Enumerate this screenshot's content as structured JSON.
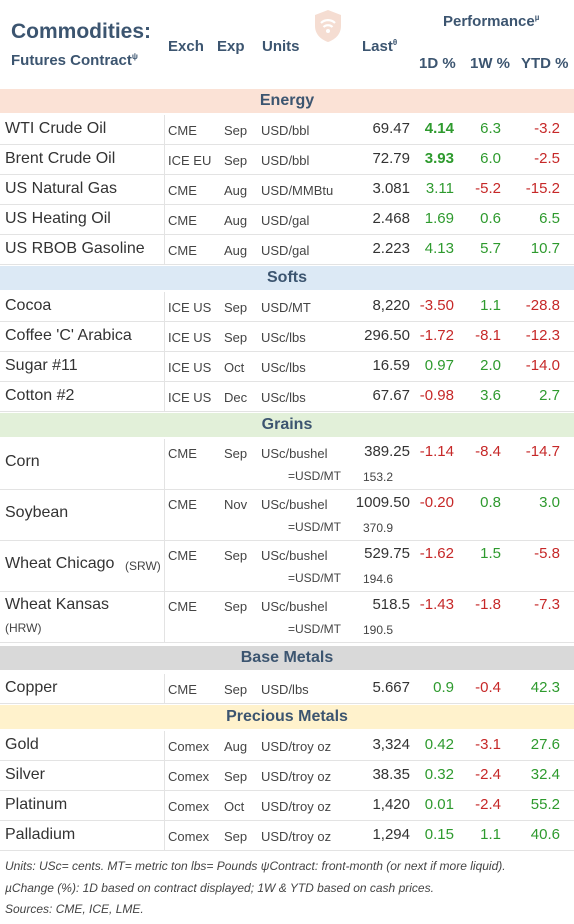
{
  "header": {
    "title": "Commodities:",
    "subtitle": "Futures Contract",
    "subtitle_sup": "ψ",
    "col_exch": "Exch",
    "col_exp": "Exp",
    "col_units": "Units",
    "col_last": "Last",
    "col_last_sup": "θ",
    "performance": "Performance",
    "performance_sup": "µ",
    "col_1d": "1D %",
    "col_1w": "1W %",
    "col_ytd": "YTD %",
    "logo_icon": "wifi-shield-logo-icon"
  },
  "colors": {
    "positive": "#2e9a2e",
    "negative": "#c62828",
    "energy_bg": "#fbe2d6",
    "softs_bg": "#dce9f5",
    "grains_bg": "#e2f0d9",
    "base_bg": "#d9d9d9",
    "precious_bg": "#fff2cc"
  },
  "sections": {
    "energy": {
      "label": "Energy",
      "rows": [
        {
          "name": "WTI Crude Oil",
          "exch": "CME",
          "exp": "Sep",
          "units": "USD/bbl",
          "last": "69.47",
          "d1": "4.14",
          "w1": "6.3",
          "ytd": "-3.2"
        },
        {
          "name": "Brent Crude Oil",
          "exch": "ICE EU",
          "exp": "Sep",
          "units": "USD/bbl",
          "last": "72.79",
          "d1": "3.93",
          "w1": "6.0",
          "ytd": "-2.5"
        },
        {
          "name": "US Natural Gas",
          "exch": "CME",
          "exp": "Aug",
          "units": "USD/MMBtu",
          "last": "3.081",
          "d1": "3.11",
          "w1": "-5.2",
          "ytd": "-15.2"
        },
        {
          "name": "US Heating Oil",
          "exch": "CME",
          "exp": "Aug",
          "units": "USD/gal",
          "last": "2.468",
          "d1": "1.69",
          "w1": "0.6",
          "ytd": "6.5"
        },
        {
          "name": "US RBOB Gasoline",
          "exch": "CME",
          "exp": "Aug",
          "units": "USD/gal",
          "last": "2.223",
          "d1": "4.13",
          "w1": "5.7",
          "ytd": "10.7"
        }
      ]
    },
    "softs": {
      "label": "Softs",
      "rows": [
        {
          "name": "Cocoa",
          "exch": "ICE US",
          "exp": "Sep",
          "units": "USD/MT",
          "last": "8,220",
          "d1": "-3.50",
          "w1": "1.1",
          "ytd": "-28.8"
        },
        {
          "name": "Coffee 'C' Arabica",
          "exch": "ICE US",
          "exp": "Sep",
          "units": "USc/lbs",
          "last": "296.50",
          "d1": "-1.72",
          "w1": "-8.1",
          "ytd": "-12.3"
        },
        {
          "name": "Sugar #11",
          "exch": "ICE US",
          "exp": "Oct",
          "units": "USc/lbs",
          "last": "16.59",
          "d1": "0.97",
          "w1": "2.0",
          "ytd": "-14.0"
        },
        {
          "name": "Cotton #2",
          "exch": "ICE US",
          "exp": "Dec",
          "units": "USc/lbs",
          "last": "67.67",
          "d1": "-0.98",
          "w1": "3.6",
          "ytd": "2.7"
        }
      ]
    },
    "grains": {
      "label": "Grains",
      "rows": [
        {
          "name": "Corn",
          "name_sub": "",
          "exch": "CME",
          "exp": "Sep",
          "units": "USc/bushel",
          "last": "389.25",
          "eq": "=USD/MT",
          "conv": "153.2",
          "d1": "-1.14",
          "w1": "-8.4",
          "ytd": "-14.7"
        },
        {
          "name": "Soybean",
          "name_sub": "",
          "exch": "CME",
          "exp": "Nov",
          "units": "USc/bushel",
          "last": "1009.50",
          "eq": "=USD/MT",
          "conv": "370.9",
          "d1": "-0.20",
          "w1": "0.8",
          "ytd": "3.0"
        },
        {
          "name": "Wheat Chicago",
          "name_sub": "(SRW)",
          "exch": "CME",
          "exp": "Sep",
          "units": "USc/bushel",
          "last": "529.75",
          "eq": "=USD/MT",
          "conv": "194.6",
          "d1": "-1.62",
          "w1": "1.5",
          "ytd": "-5.8"
        },
        {
          "name": "Wheat Kansas",
          "name_sub": "(HRW)",
          "exch": "CME",
          "exp": "Sep",
          "units": "USc/bushel",
          "last": "518.5",
          "eq": "=USD/MT",
          "conv": "190.5",
          "d1": "-1.43",
          "w1": "-1.8",
          "ytd": "-7.3"
        }
      ]
    },
    "base": {
      "label": "Base Metals",
      "rows": [
        {
          "name": "Copper",
          "exch": "CME",
          "exp": "Sep",
          "units": "USD/lbs",
          "last": "5.667",
          "d1": "0.9",
          "w1": "-0.4",
          "ytd": "42.3"
        }
      ]
    },
    "precious": {
      "label": "Precious Metals",
      "rows": [
        {
          "name": "Gold",
          "exch": "Comex",
          "exp": "Aug",
          "units": "USD/troy oz",
          "last": "3,324",
          "d1": "0.42",
          "w1": "-3.1",
          "ytd": "27.6"
        },
        {
          "name": "Silver",
          "exch": "Comex",
          "exp": "Sep",
          "units": "USD/troy oz",
          "last": "38.35",
          "d1": "0.32",
          "w1": "-2.4",
          "ytd": "32.4"
        },
        {
          "name": "Platinum",
          "exch": "Comex",
          "exp": "Oct",
          "units": "USD/troy oz",
          "last": "1,420",
          "d1": "0.01",
          "w1": "-2.4",
          "ytd": "55.2"
        },
        {
          "name": "Palladium",
          "exch": "Comex",
          "exp": "Sep",
          "units": "USD/troy oz",
          "last": "1,294",
          "d1": "0.15",
          "w1": "1.1",
          "ytd": "40.6"
        }
      ]
    }
  },
  "footnotes": {
    "line1": "Units: USc= cents.   MT= metric ton    lbs= Pounds  ψContract: front-month (or next if more liquid).",
    "line2": "µChange (%): 1D based on contract displayed; 1W & YTD based on cash prices.",
    "line3": "Sources: CME, ICE, LME."
  }
}
